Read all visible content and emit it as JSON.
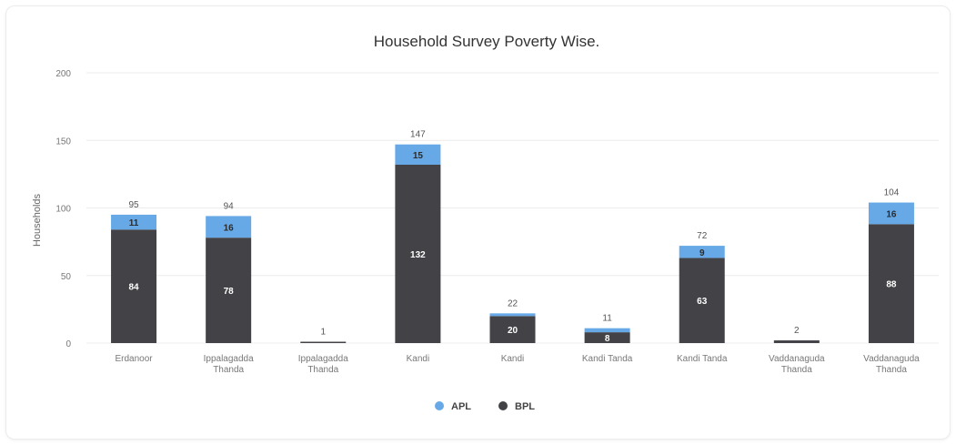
{
  "chart_data": {
    "type": "bar",
    "stacked": true,
    "title": "Household Survey Poverty Wise.",
    "ylabel": "Households",
    "xlabel": "",
    "ylim": [
      0,
      200
    ],
    "yticks": [
      0,
      50,
      100,
      150,
      200
    ],
    "grid": true,
    "legend_position": "bottom",
    "categories": [
      [
        "Erdanoor"
      ],
      [
        "Ippalagadda",
        "Thanda"
      ],
      [
        "Ippalagadda",
        "Thanda"
      ],
      [
        "Kandi"
      ],
      [
        "Kandi"
      ],
      [
        "Kandi Tanda"
      ],
      [
        "Kandi Tanda"
      ],
      [
        "Vaddanaguda",
        "Thanda"
      ],
      [
        "Vaddanaguda",
        "Thanda"
      ]
    ],
    "series": [
      {
        "name": "BPL",
        "color": "#424247",
        "values": [
          84,
          78,
          1,
          132,
          20,
          8,
          63,
          2,
          88
        ]
      },
      {
        "name": "APL",
        "color": "#66a9e6",
        "values": [
          11,
          16,
          0,
          15,
          2,
          3,
          9,
          0,
          16
        ]
      }
    ],
    "segment_labels": {
      "BPL": [
        "84",
        "78",
        "",
        "132",
        "20",
        "8",
        "63",
        "",
        "88"
      ],
      "APL": [
        "11",
        "16",
        "",
        "15",
        "",
        "",
        "9",
        "",
        "16"
      ]
    },
    "totals": [
      95,
      94,
      1,
      147,
      22,
      11,
      72,
      2,
      104
    ]
  }
}
